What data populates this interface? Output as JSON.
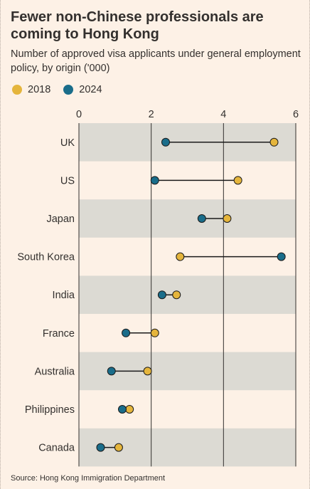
{
  "title": "Fewer non-Chinese professionals are coming to Hong Kong",
  "subtitle": "Number of approved visa applicants under general employment policy, by origin ('000)",
  "source": "Source: Hong Kong Immigration Department",
  "colors": {
    "y2018": "#e5b53c",
    "y2024": "#1a6d8a",
    "band": "#dcdad3",
    "background": "#fdf1e6"
  },
  "chart_data": {
    "type": "dumbbell",
    "title": "Fewer non-Chinese professionals are coming to Hong Kong",
    "subtitle": "Number of approved visa applicants under general employment policy, by origin ('000)",
    "xlim": [
      0,
      6
    ],
    "xticks": [
      "0",
      "2",
      "4",
      "6"
    ],
    "categories": [
      "UK",
      "US",
      "Japan",
      "South Korea",
      "India",
      "France",
      "Australia",
      "Philippines",
      "Canada"
    ],
    "series": [
      {
        "name": "2018",
        "color": "#e5b53c",
        "values": [
          5.4,
          4.4,
          4.1,
          2.8,
          2.7,
          2.1,
          1.9,
          1.4,
          1.1
        ]
      },
      {
        "name": "2024",
        "color": "#1a6d8a",
        "values": [
          2.4,
          2.1,
          3.4,
          5.6,
          2.3,
          1.3,
          0.9,
          1.2,
          0.6
        ]
      }
    ],
    "grid": true,
    "legend": "top-left"
  }
}
